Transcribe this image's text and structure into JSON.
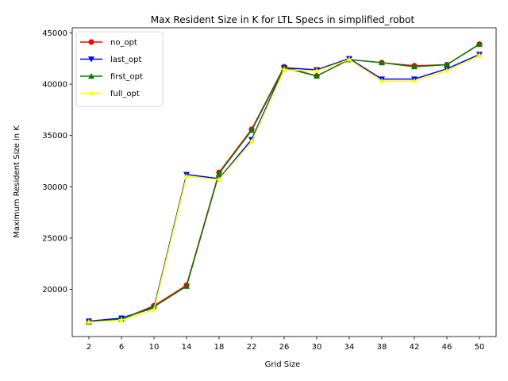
{
  "chart_data": {
    "type": "line",
    "title": "Max Resident Size in K for LTL Specs in simplified_robot",
    "xlabel": "Grid Size",
    "ylabel": "Maximum Resident Size in K",
    "categories": [
      "2",
      "6",
      "10",
      "14",
      "18",
      "22",
      "26",
      "30",
      "34",
      "38",
      "42",
      "46",
      "50"
    ],
    "ylim": [
      15400,
      45500
    ],
    "yticks": [
      20000,
      25000,
      30000,
      35000,
      40000,
      45000
    ],
    "grid": false,
    "legend_position": "upper-left",
    "series": [
      {
        "name": "no_opt",
        "color": "#ff0000",
        "marker": "circle",
        "values": [
          16900,
          17100,
          18400,
          20400,
          31400,
          35600,
          41700,
          40800,
          42400,
          42100,
          41800,
          41900,
          43900
        ]
      },
      {
        "name": "last_opt",
        "color": "#0000ff",
        "marker": "triangle-down",
        "values": [
          16900,
          17200,
          18200,
          31200,
          30800,
          34600,
          41600,
          41400,
          42500,
          40500,
          40500,
          41500,
          42900
        ]
      },
      {
        "name": "first_opt",
        "color": "#008000",
        "marker": "triangle-up",
        "values": [
          16800,
          17100,
          18300,
          20300,
          31300,
          35500,
          41600,
          40800,
          42400,
          42100,
          41700,
          41900,
          43900
        ]
      },
      {
        "name": "full_opt",
        "color": "#ffff00",
        "marker": "star",
        "values": [
          16800,
          17000,
          18000,
          31000,
          30700,
          34400,
          41400,
          41300,
          42400,
          40300,
          40300,
          41300,
          42800
        ]
      }
    ]
  }
}
